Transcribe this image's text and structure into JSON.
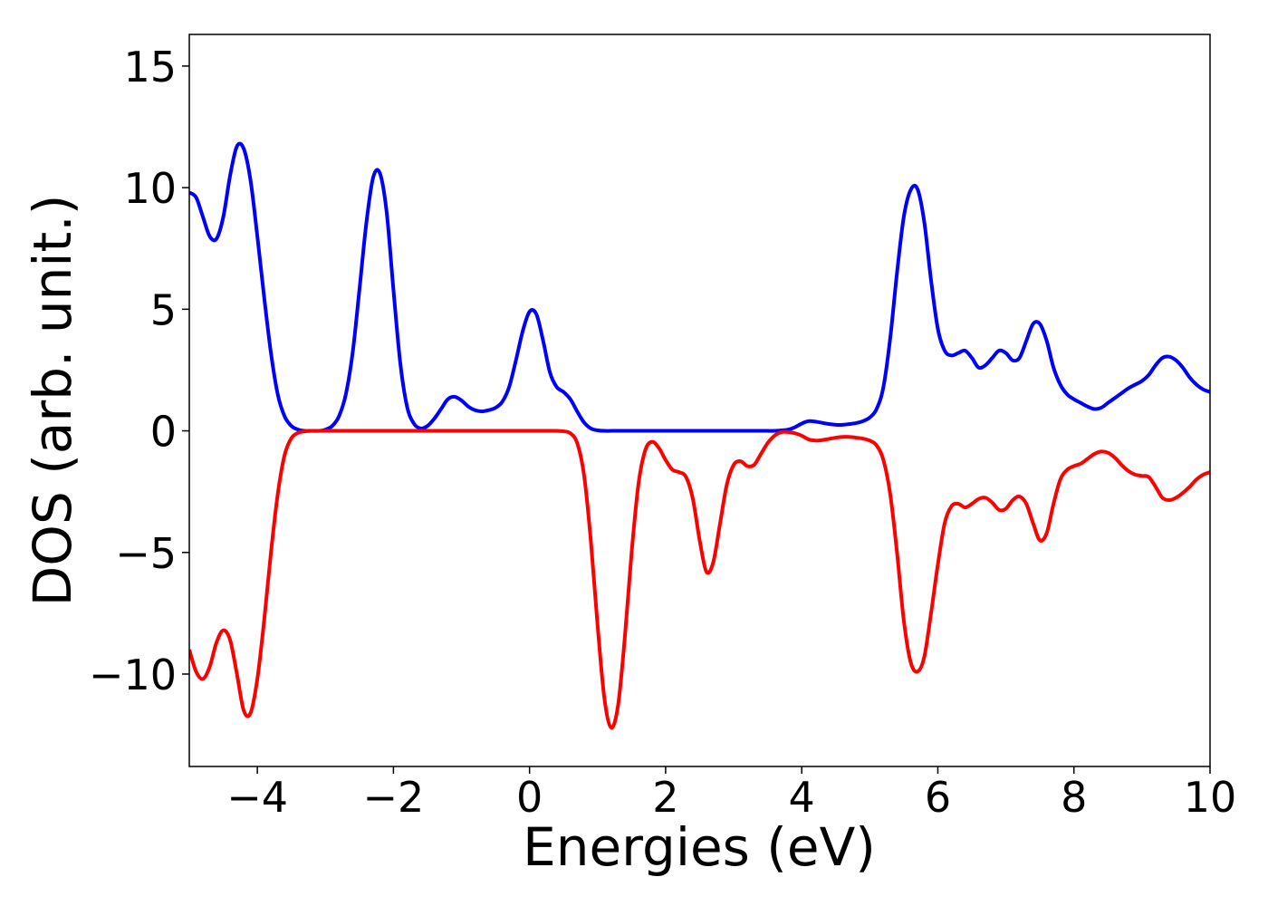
{
  "chart_data": {
    "type": "line",
    "xlabel": "Energies (eV)",
    "ylabel": "DOS (arb. unit.)",
    "xlim": [
      -5,
      10
    ],
    "ylim": [
      -13.8,
      16.3
    ],
    "xticks": [
      {
        "value": -4,
        "label": "−4"
      },
      {
        "value": -2,
        "label": "−2"
      },
      0,
      2,
      4,
      6,
      8,
      10
    ],
    "yticks": [
      {
        "value": -10,
        "label": "−10"
      },
      {
        "value": -5,
        "label": "−5"
      },
      0,
      5,
      10,
      15
    ],
    "grid": false,
    "x": [
      -5,
      -4.9,
      -4.8,
      -4.7,
      -4.6,
      -4.5,
      -4.4,
      -4.3,
      -4.2,
      -4.1,
      -4,
      -3.9,
      -3.8,
      -3.7,
      -3.6,
      -3.5,
      -3.4,
      -3.3,
      -3.2,
      -3.1,
      -3,
      -2.9,
      -2.8,
      -2.7,
      -2.6,
      -2.5,
      -2.4,
      -2.3,
      -2.2,
      -2.1,
      -2,
      -1.9,
      -1.8,
      -1.7,
      -1.6,
      -1.5,
      -1.4,
      -1.3,
      -1.2,
      -1.1,
      -1,
      -0.9,
      -0.8,
      -0.7,
      -0.6,
      -0.5,
      -0.4,
      -0.3,
      -0.2,
      -0.1,
      0,
      0.1,
      0.2,
      0.3,
      0.4,
      0.5,
      0.6,
      0.7,
      0.8,
      0.9,
      1,
      1.1,
      1.2,
      1.3,
      1.4,
      1.5,
      1.6,
      1.7,
      1.8,
      1.9,
      2,
      2.1,
      2.2,
      2.3,
      2.4,
      2.5,
      2.6,
      2.7,
      2.8,
      2.9,
      3,
      3.1,
      3.2,
      3.3,
      3.4,
      3.5,
      3.6,
      3.7,
      3.8,
      3.9,
      4,
      4.1,
      4.2,
      4.3,
      4.4,
      4.5,
      4.6,
      4.7,
      4.8,
      4.9,
      5,
      5.1,
      5.2,
      5.3,
      5.4,
      5.5,
      5.6,
      5.7,
      5.8,
      5.9,
      6,
      6.1,
      6.2,
      6.3,
      6.4,
      6.5,
      6.6,
      6.7,
      6.8,
      6.9,
      7,
      7.1,
      7.2,
      7.3,
      7.4,
      7.5,
      7.6,
      7.7,
      7.8,
      7.9,
      8,
      8.1,
      8.2,
      8.3,
      8.4,
      8.5,
      8.6,
      8.7,
      8.8,
      8.9,
      9,
      9.1,
      9.2,
      9.3,
      9.4,
      9.5,
      9.6,
      9.7,
      9.8,
      9.9,
      10
    ],
    "series": [
      {
        "color": "#0000ff",
        "values": [
          9.8,
          9.6,
          8.8,
          8.0,
          7.9,
          8.8,
          10.5,
          11.7,
          11.6,
          10.3,
          8.0,
          5.5,
          3.2,
          1.5,
          0.6,
          0.2,
          0.05,
          0,
          0,
          0,
          0.05,
          0.2,
          0.6,
          1.5,
          3.2,
          5.8,
          8.5,
          10.4,
          10.6,
          9.0,
          5.8,
          2.8,
          1.0,
          0.3,
          0.1,
          0.2,
          0.5,
          0.9,
          1.3,
          1.4,
          1.25,
          1.0,
          0.85,
          0.8,
          0.85,
          0.95,
          1.2,
          1.8,
          2.9,
          4.1,
          4.9,
          4.8,
          3.7,
          2.4,
          1.8,
          1.6,
          1.3,
          0.8,
          0.35,
          0.1,
          0.02,
          0,
          0,
          0,
          0,
          0,
          0,
          0,
          0,
          0,
          0,
          0,
          0,
          0,
          0,
          0,
          0,
          0,
          0,
          0,
          0,
          0,
          0,
          0,
          0,
          0,
          0,
          0.02,
          0.05,
          0.15,
          0.3,
          0.4,
          0.38,
          0.33,
          0.28,
          0.25,
          0.25,
          0.28,
          0.32,
          0.4,
          0.55,
          0.9,
          1.8,
          3.8,
          6.5,
          8.8,
          9.9,
          9.95,
          8.6,
          6.2,
          4.2,
          3.3,
          3.1,
          3.2,
          3.3,
          3.0,
          2.6,
          2.7,
          3.0,
          3.3,
          3.2,
          2.9,
          3.0,
          3.7,
          4.4,
          4.4,
          3.7,
          2.6,
          1.9,
          1.5,
          1.3,
          1.15,
          1.0,
          0.9,
          0.95,
          1.15,
          1.35,
          1.55,
          1.75,
          1.9,
          2.05,
          2.3,
          2.7,
          3.0,
          3.05,
          2.9,
          2.6,
          2.2,
          1.9,
          1.7,
          1.6
        ]
      },
      {
        "color": "#ff0000",
        "values": [
          -9.0,
          -9.9,
          -10.2,
          -9.7,
          -8.7,
          -8.2,
          -8.6,
          -10.0,
          -11.5,
          -11.6,
          -10.2,
          -7.8,
          -5.0,
          -2.6,
          -1.0,
          -0.3,
          -0.08,
          -0.02,
          0,
          0,
          0,
          0,
          0,
          0,
          0,
          0,
          0,
          0,
          0,
          0,
          0,
          0,
          0,
          0,
          0,
          0,
          0,
          0,
          0,
          0,
          0,
          0,
          0,
          0,
          0,
          0,
          0,
          0,
          0,
          0,
          0,
          0,
          0,
          0,
          0,
          -0.02,
          -0.1,
          -0.5,
          -1.8,
          -4.5,
          -8.0,
          -11.0,
          -12.2,
          -11.3,
          -8.5,
          -5.0,
          -2.2,
          -0.8,
          -0.45,
          -0.7,
          -1.2,
          -1.6,
          -1.7,
          -1.9,
          -2.8,
          -4.5,
          -5.8,
          -5.4,
          -3.8,
          -2.2,
          -1.4,
          -1.25,
          -1.45,
          -1.4,
          -0.95,
          -0.5,
          -0.2,
          -0.05,
          -0.05,
          -0.1,
          -0.2,
          -0.35,
          -0.4,
          -0.38,
          -0.33,
          -0.28,
          -0.25,
          -0.25,
          -0.28,
          -0.32,
          -0.4,
          -0.6,
          -1.2,
          -2.6,
          -5.0,
          -7.8,
          -9.5,
          -9.9,
          -9.3,
          -7.5,
          -5.5,
          -3.8,
          -3.1,
          -3.0,
          -3.15,
          -3.0,
          -2.8,
          -2.75,
          -2.95,
          -3.25,
          -3.2,
          -2.85,
          -2.7,
          -3.0,
          -3.8,
          -4.5,
          -4.2,
          -3.0,
          -2.0,
          -1.6,
          -1.45,
          -1.35,
          -1.15,
          -0.95,
          -0.85,
          -0.9,
          -1.1,
          -1.4,
          -1.65,
          -1.8,
          -1.85,
          -1.9,
          -2.3,
          -2.75,
          -2.85,
          -2.75,
          -2.55,
          -2.3,
          -2.0,
          -1.8,
          -1.7
        ]
      }
    ]
  }
}
